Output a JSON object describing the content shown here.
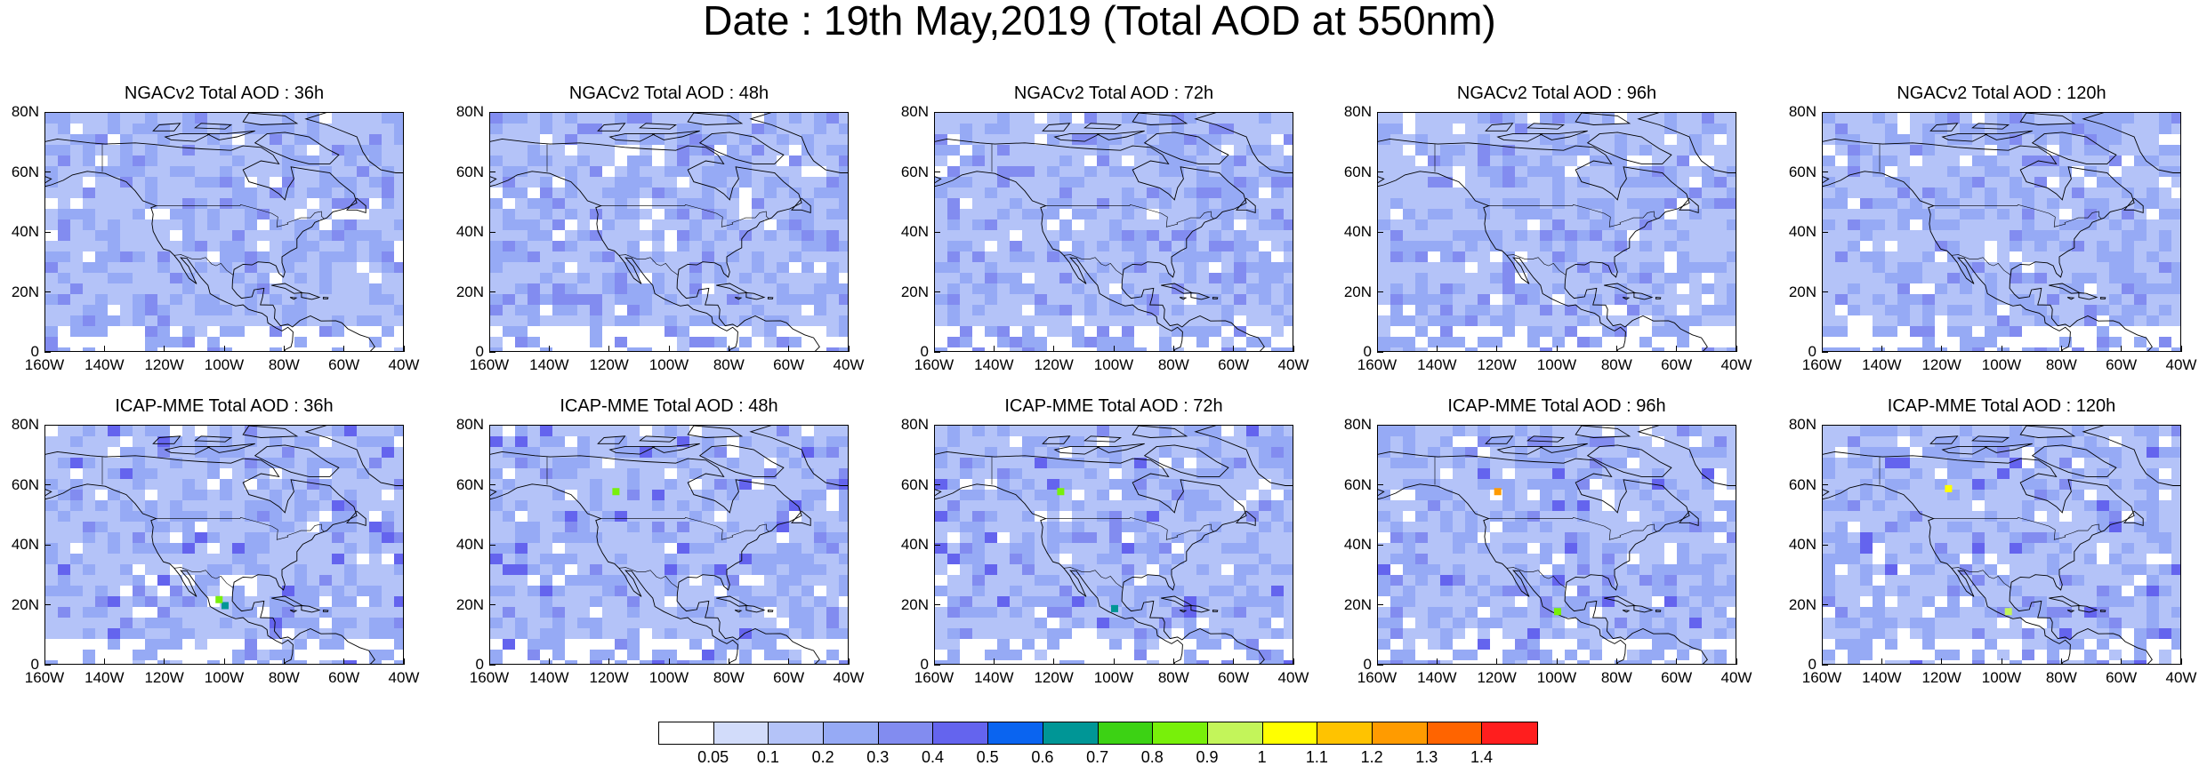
{
  "title": "Date : 19th May,2019 (Total AOD at 550nm)",
  "panels": [
    {
      "title": "NGACv2 Total AOD : 36h",
      "model": "NGACv2",
      "lead": "36h"
    },
    {
      "title": "NGACv2 Total AOD : 48h",
      "model": "NGACv2",
      "lead": "48h"
    },
    {
      "title": "NGACv2 Total AOD : 72h",
      "model": "NGACv2",
      "lead": "72h"
    },
    {
      "title": "NGACv2 Total AOD : 96h",
      "model": "NGACv2",
      "lead": "96h"
    },
    {
      "title": "NGACv2 Total AOD : 120h",
      "model": "NGACv2",
      "lead": "120h"
    },
    {
      "title": "ICAP-MME Total AOD : 36h",
      "model": "ICAP-MME",
      "lead": "36h"
    },
    {
      "title": "ICAP-MME Total AOD : 48h",
      "model": "ICAP-MME",
      "lead": "48h"
    },
    {
      "title": "ICAP-MME Total AOD : 72h",
      "model": "ICAP-MME",
      "lead": "72h"
    },
    {
      "title": "ICAP-MME Total AOD : 96h",
      "model": "ICAP-MME",
      "lead": "96h"
    },
    {
      "title": "ICAP-MME Total AOD : 120h",
      "model": "ICAP-MME",
      "lead": "120h"
    }
  ],
  "map_extent": {
    "lon_min": -160,
    "lon_max": -40,
    "lat_min": 0,
    "lat_max": 80
  },
  "lat_labels": [
    "80N",
    "60N",
    "40N",
    "20N",
    "0"
  ],
  "lon_labels": [
    "160W",
    "140W",
    "120W",
    "100W",
    "80W",
    "60W",
    "40W"
  ],
  "colorbar": {
    "labels": [
      "0.05",
      "0.1",
      "0.2",
      "0.3",
      "0.4",
      "0.5",
      "0.6",
      "0.7",
      "0.8",
      "0.9",
      "1",
      "1.1",
      "1.2",
      "1.3",
      "1.4"
    ],
    "colors": [
      "#ffffff",
      "#d2dcfa",
      "#b4c3f8",
      "#96aaf5",
      "#828cf0",
      "#6464ee",
      "#0a64f0",
      "#009696",
      "#3cd214",
      "#78f00a",
      "#c3f55a",
      "#ffff00",
      "#ffc300",
      "#ff9b00",
      "#ff6400",
      "#ff1e1e"
    ]
  },
  "hotspots": {
    "icap_36h": [
      {
        "lon": -100,
        "lat": 20,
        "aod": 0.6
      },
      {
        "lon": -102,
        "lat": 22,
        "aod": 0.8
      }
    ],
    "icap_48h": [
      {
        "lon": -118,
        "lat": 58,
        "aod": 0.8
      }
    ],
    "icap_72h": [
      {
        "lon": -118,
        "lat": 58,
        "aod": 0.8
      },
      {
        "lon": -100,
        "lat": 19,
        "aod": 0.6
      }
    ],
    "icap_96h": [
      {
        "lon": -120,
        "lat": 58,
        "aod": 1.2
      },
      {
        "lon": -100,
        "lat": 18,
        "aod": 0.8
      }
    ],
    "icap_120h": [
      {
        "lon": -118,
        "lat": 59,
        "aod": 1.0
      },
      {
        "lon": -98,
        "lat": 18,
        "aod": 0.9
      }
    ]
  }
}
